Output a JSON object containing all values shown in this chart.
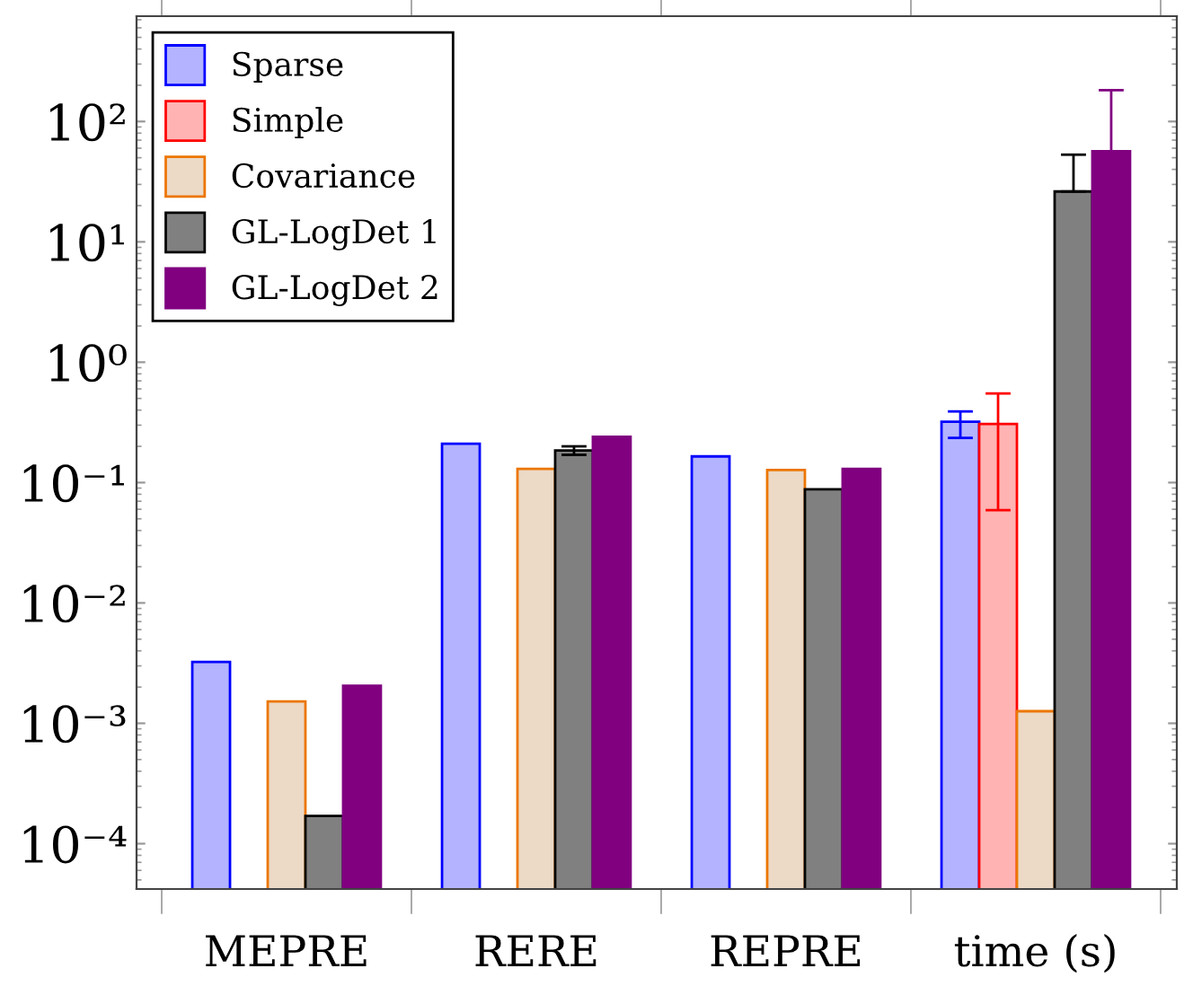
{
  "chart_data": {
    "type": "bar",
    "categories": [
      "MEPRE",
      "RERE",
      "REPRE",
      "time (s)"
    ],
    "series": [
      {
        "name": "Sparse",
        "color": "#b3b3ff",
        "values": [
          0.00324,
          0.21,
          0.165,
          0.32
        ],
        "errors": [
          null,
          null,
          null,
          [
            0.235,
            0.39
          ]
        ]
      },
      {
        "name": "Simple",
        "color": "#ffb3b3",
        "values": [
          null,
          null,
          null,
          0.307
        ],
        "errors": [
          null,
          null,
          null,
          [
            0.059,
            0.55
          ]
        ]
      },
      {
        "name": "Covariance",
        "color": "#ecd9c6",
        "values": [
          0.00152,
          0.13,
          0.127,
          0.00126
        ]
      },
      {
        "name": "GL-LogDet 1",
        "color": "#808080",
        "values": [
          0.00017,
          0.185,
          0.088,
          26.2
        ],
        "errors": [
          null,
          [
            0.17,
            0.2
          ],
          null,
          [
            26.2,
            53
          ]
        ]
      },
      {
        "name": "GL-LogDet 2",
        "color": "#800080",
        "values": [
          0.00205,
          0.24,
          0.13,
          56.6
        ],
        "errors": [
          null,
          null,
          null,
          [
            56.6,
            182
          ]
        ]
      }
    ],
    "log": "y",
    "ylim": [
      4.2e-05,
      750
    ],
    "yticks": [
      {
        "value": 0.0001,
        "label": "10⁻⁴"
      },
      {
        "value": 0.001,
        "label": "10⁻³"
      },
      {
        "value": 0.01,
        "label": "10⁻²"
      },
      {
        "value": 0.1,
        "label": "10⁻¹"
      },
      {
        "value": 1,
        "label": "10⁰"
      },
      {
        "value": 10,
        "label": "10¹"
      },
      {
        "value": 100,
        "label": "10²"
      }
    ],
    "grid": false,
    "legend": "top left"
  }
}
